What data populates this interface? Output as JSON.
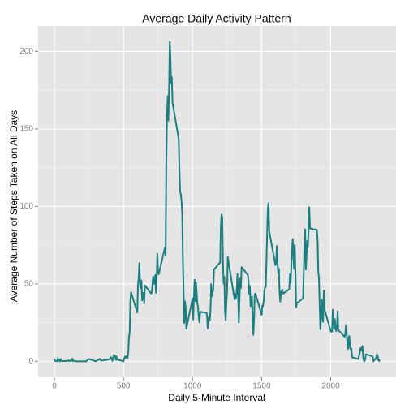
{
  "chart_data": {
    "type": "line",
    "title": "Average Daily Activity Pattern",
    "x_label": "Daily 5-Minute Interval",
    "y_label": "Average Number of Steps Taken on All Days",
    "color": "#1b7f80",
    "grid": true,
    "xlim": [
      -117.75,
      2472.75
    ],
    "ylim": [
      -10.31,
      216.48
    ],
    "xticks": [
      0,
      500,
      1000,
      1500,
      2000
    ],
    "yticks": [
      0,
      50,
      100,
      150,
      200
    ],
    "x": [
      0,
      5,
      10,
      15,
      20,
      25,
      30,
      35,
      40,
      45,
      50,
      55,
      100,
      105,
      110,
      115,
      120,
      125,
      130,
      135,
      140,
      145,
      150,
      155,
      200,
      230,
      250,
      300,
      330,
      335,
      340,
      400,
      410,
      420,
      430,
      440,
      445,
      450,
      455,
      500,
      505,
      510,
      515,
      520,
      525,
      530,
      535,
      540,
      545,
      550,
      555,
      600,
      605,
      610,
      615,
      620,
      625,
      630,
      635,
      640,
      645,
      650,
      655,
      700,
      705,
      710,
      715,
      720,
      725,
      730,
      735,
      740,
      745,
      750,
      755,
      800,
      805,
      810,
      815,
      820,
      825,
      830,
      835,
      840,
      845,
      850,
      855,
      900,
      905,
      910,
      915,
      920,
      925,
      930,
      935,
      940,
      945,
      950,
      955,
      1000,
      1005,
      1010,
      1015,
      1020,
      1025,
      1030,
      1035,
      1040,
      1045,
      1050,
      1055,
      1100,
      1105,
      1110,
      1115,
      1120,
      1125,
      1130,
      1135,
      1140,
      1145,
      1150,
      1155,
      1200,
      1205,
      1210,
      1215,
      1220,
      1225,
      1230,
      1235,
      1240,
      1245,
      1250,
      1255,
      1300,
      1305,
      1310,
      1315,
      1320,
      1325,
      1330,
      1335,
      1340,
      1345,
      1350,
      1355,
      1400,
      1405,
      1410,
      1415,
      1420,
      1425,
      1430,
      1435,
      1440,
      1445,
      1450,
      1455,
      1500,
      1505,
      1510,
      1515,
      1520,
      1525,
      1530,
      1535,
      1540,
      1545,
      1550,
      1555,
      1600,
      1605,
      1610,
      1615,
      1620,
      1625,
      1630,
      1635,
      1640,
      1645,
      1650,
      1655,
      1700,
      1705,
      1710,
      1715,
      1720,
      1725,
      1730,
      1735,
      1740,
      1745,
      1750,
      1755,
      1800,
      1805,
      1810,
      1815,
      1820,
      1825,
      1830,
      1835,
      1840,
      1845,
      1850,
      1855,
      1900,
      1905,
      1910,
      1915,
      1920,
      1925,
      1930,
      1935,
      1940,
      1945,
      1950,
      1955,
      2000,
      2005,
      2010,
      2015,
      2020,
      2025,
      2030,
      2035,
      2040,
      2045,
      2050,
      2055,
      2100,
      2105,
      2110,
      2115,
      2120,
      2125,
      2130,
      2135,
      2140,
      2145,
      2150,
      2155,
      2200,
      2205,
      2210,
      2215,
      2220,
      2225,
      2230,
      2235,
      2240,
      2245,
      2250,
      2255,
      2300,
      2305,
      2310,
      2315,
      2320,
      2325,
      2330,
      2335,
      2340,
      2345,
      2350,
      2355
    ],
    "values": [
      1.7,
      0.3,
      0.1,
      0.2,
      0.1,
      2.1,
      0.5,
      0.9,
      0,
      1.5,
      0.3,
      0.1,
      0.3,
      0.7,
      0.2,
      0.3,
      0,
      1.1,
      1.8,
      0.2,
      0.2,
      0.4,
      0.3,
      0,
      0,
      0,
      1.5,
      0,
      1.6,
      0.6,
      0.5,
      1.2,
      2.6,
      0.3,
      4.1,
      3.5,
      0.8,
      3.1,
      1.1,
      0,
      1.6,
      3,
      2.2,
      3.3,
      3,
      2.1,
      6.1,
      16,
      18.3,
      39.5,
      44.5,
      31.5,
      49.3,
      53.8,
      63.5,
      50,
      47.1,
      52.2,
      39.3,
      44,
      44.2,
      37.4,
      49,
      43.8,
      44.4,
      50.5,
      54.5,
      49.9,
      51,
      55.7,
      44.3,
      52.3,
      69.5,
      57.8,
      56.2,
      73.4,
      68.2,
      129.4,
      157.5,
      171.2,
      155.4,
      177.3,
      206.2,
      195.9,
      179.6,
      183.4,
      167,
      143.5,
      124,
      109.1,
      108.1,
      103.7,
      95.97,
      66.2,
      45.2,
      24.8,
      38.8,
      34.98,
      21.1,
      40.6,
      26.98,
      42.4,
      52.7,
      38.9,
      50.8,
      44.3,
      37.4,
      34.7,
      28.3,
      25.1,
      31.9,
      31.4,
      29.7,
      21.3,
      25.5,
      28.4,
      26.5,
      33.4,
      49.98,
      42,
      44.6,
      46,
      59.2,
      63.9,
      87.7,
      94.8,
      92.8,
      63.4,
      50.2,
      54.5,
      32.4,
      26.5,
      37.7,
      45.1,
      67.3,
      42.3,
      39.9,
      43.3,
      40.98,
      46.2,
      56.4,
      42.8,
      25.1,
      39.97,
      53.5,
      47.3,
      60.8,
      55.8,
      51.96,
      43.6,
      48.7,
      35.5,
      37.5,
      41.8,
      27.5,
      17.1,
      26.2,
      43.2,
      43.8,
      30,
      36.1,
      35.5,
      38.8,
      45.96,
      47.8,
      48.1,
      65.3,
      82.9,
      98.7,
      102.1,
      83.96,
      62.1,
      64.1,
      74.5,
      63.2,
      56.9,
      59.8,
      43.9,
      38.6,
      44.7,
      45.5,
      46.2,
      43.7,
      46.6,
      56.3,
      50.7,
      61.2,
      72.7,
      78.9,
      68.9,
      59.7,
      75.1,
      56.5,
      34.8,
      37.5,
      40.7,
      58,
      74.7,
      85.3,
      59.3,
      67.8,
      77.7,
      74.2,
      85.3,
      99.5,
      86.6,
      85.6,
      84.9,
      77.8,
      58,
      53.4,
      36.3,
      20.7,
      27.4,
      40,
      30.2,
      25.5,
      45.7,
      33.5,
      19.6,
      19,
      19.3,
      33.3,
      26.8,
      21.2,
      27.3,
      21.3,
      19.5,
      21.3,
      32.3,
      20.2,
      15.9,
      17.2,
      23.5,
      19.2,
      12.5,
      8,
      14.7,
      16.3,
      8.7,
      7.8,
      8.1,
      2.6,
      1.5,
      3.7,
      4.8,
      8.5,
      7.1,
      8.7,
      9.8,
      2.2,
      0.3,
      0.1,
      1.6,
      4.6,
      3.3,
      2.8,
      0,
      0.8,
      1,
      1.6,
      2.6,
      4.7,
      3.3,
      0.6,
      0.2,
      1.1
    ]
  }
}
